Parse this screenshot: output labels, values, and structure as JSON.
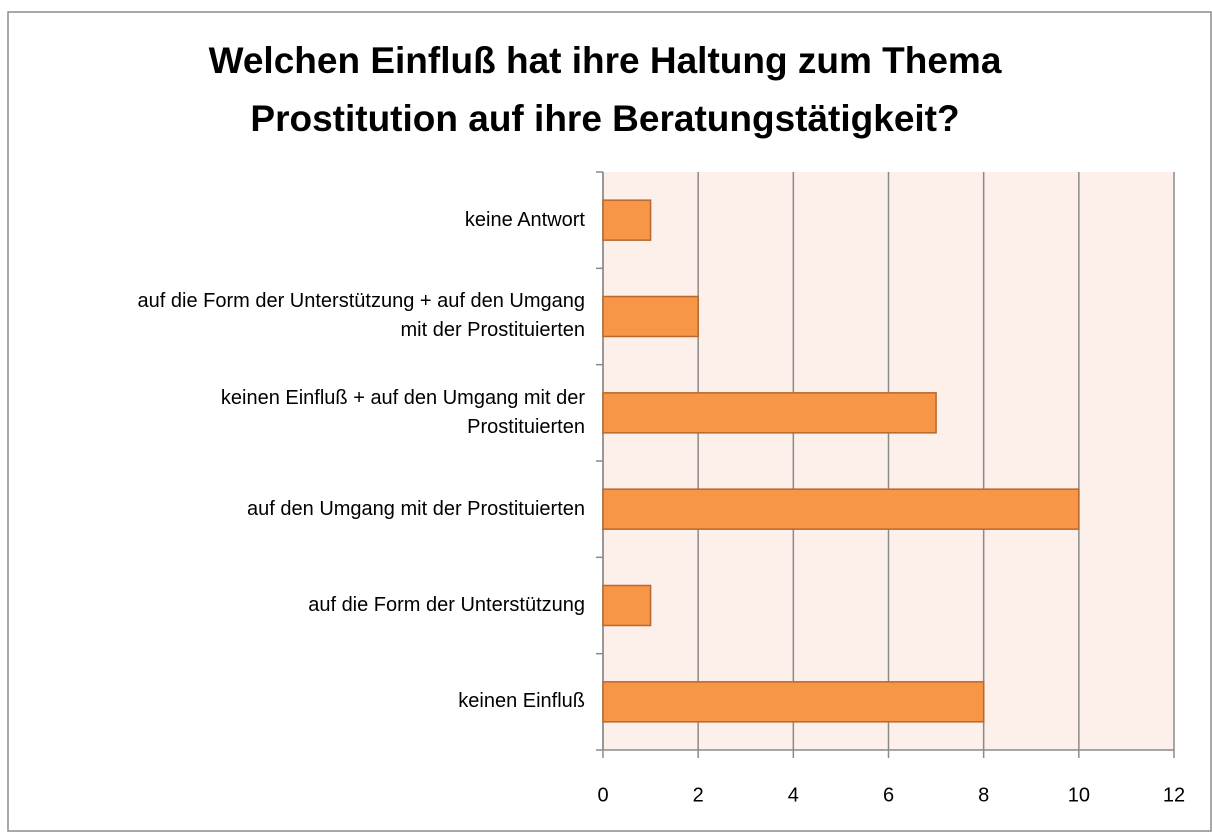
{
  "chart_data": {
    "type": "bar",
    "orientation": "horizontal",
    "title": "Welchen Einfluß hat ihre Haltung zum Thema\nProstitution auf ihre Beratungstätigkeit?",
    "categories": [
      "keine Antwort",
      "auf die Form der Unterstützung + auf den Umgang\nmit der Prostituierten",
      "keinen Einfluß + auf den Umgang mit der\nProstituierten",
      "auf den Umgang mit der Prostituierten",
      "auf die Form der Unterstützung",
      "keinen Einfluß"
    ],
    "values": [
      1,
      2,
      7,
      10,
      1,
      8
    ],
    "color": "#f79646",
    "xlim": [
      0,
      12
    ],
    "xticks": [
      0,
      2,
      4,
      6,
      8,
      10,
      12
    ],
    "grid": true
  }
}
